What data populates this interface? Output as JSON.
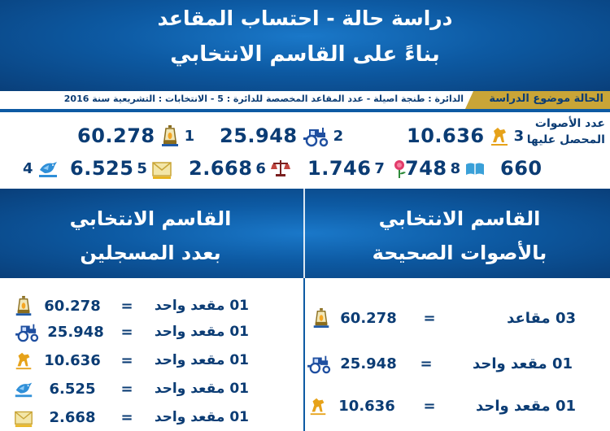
{
  "header": {
    "title_line1": "دراسة حالة - احتساب المقاعد",
    "title_line2": "بناءً على القاسم الانتخابي"
  },
  "strip": {
    "badge": "الحالة موضوع الدراسة",
    "info": "الدائرة : طنجة اصيلة - عدد المقاعد المخصصة للدائرة : 5 - الانتخابات : التشريعية سنة 2016"
  },
  "votes": {
    "label": "عدد الأصوات المحصل عليها",
    "items": [
      {
        "rank": "1",
        "value": "60.278",
        "icon": "lamp-icon"
      },
      {
        "rank": "2",
        "value": "25.948",
        "icon": "tractor-icon"
      },
      {
        "rank": "3",
        "value": "10.636",
        "icon": "horse-icon"
      },
      {
        "rank": "4",
        "value": "6.525",
        "icon": "bird-icon"
      },
      {
        "rank": "5",
        "value": "2.668",
        "icon": "envelope-icon"
      },
      {
        "rank": "6",
        "value": "1.746",
        "icon": "scales-icon"
      },
      {
        "rank": "7",
        "value": "748",
        "icon": "rose-icon"
      },
      {
        "rank": "8",
        "value": "660",
        "icon": "book-icon"
      }
    ]
  },
  "panels": {
    "right_title_line1": "القاسم الانتخابي",
    "right_title_line2": "بالأصوات الصحيحة",
    "left_title_line1": "القاسم الانتخابي",
    "left_title_line2": "بعدد المسجلين"
  },
  "right_rows": [
    {
      "seats": "03 مقاعد",
      "eq": "=",
      "value": "60.278",
      "icon": "lamp-icon"
    },
    {
      "seats": "01 مقعد واحد",
      "eq": "=",
      "value": "25.948",
      "icon": "tractor-icon"
    },
    {
      "seats": "01 مقعد واحد",
      "eq": "=",
      "value": "10.636",
      "icon": "horse-icon"
    }
  ],
  "left_rows": [
    {
      "seats": "01 مقعد واحد",
      "eq": "=",
      "value": "60.278",
      "icon": "lamp-icon"
    },
    {
      "seats": "01 مقعد واحد",
      "eq": "=",
      "value": "25.948",
      "icon": "tractor-icon"
    },
    {
      "seats": "01 مقعد واحد",
      "eq": "=",
      "value": "10.636",
      "icon": "horse-icon"
    },
    {
      "seats": "01 مقعد واحد",
      "eq": "=",
      "value": "6.525",
      "icon": "bird-icon"
    },
    {
      "seats": "01 مقعد واحد",
      "eq": "=",
      "value": "2.668",
      "icon": "envelope-icon"
    }
  ],
  "colors": {
    "brand_blue": "#0d5aa3",
    "gold": "#c9a537",
    "text_navy": "#0b3c74"
  }
}
